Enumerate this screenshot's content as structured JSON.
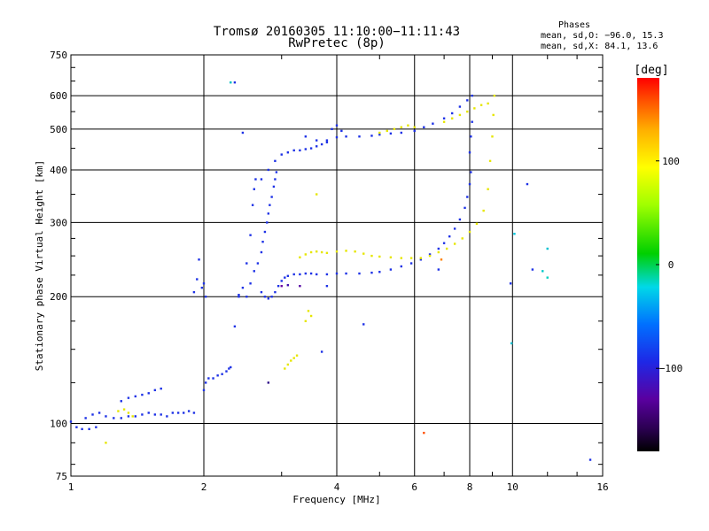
{
  "chart_data": {
    "type": "scatter",
    "title": "Tromsø 20160305 11:10:00−11:11:43",
    "subtitle": "RwPretec (8p)",
    "phases_info": {
      "heading": "Phases",
      "line1": "mean, sd,O: −96.0, 15.3",
      "line2": "mean, sd,X:  84.1, 13.6"
    },
    "xlabel": "Frequency [MHz]",
    "ylabel": "Stationary phase Virtual Height [km]",
    "x_scale": "log",
    "y_scale": "log",
    "xlim": [
      1,
      16
    ],
    "ylim": [
      75,
      750
    ],
    "x_ticks": [
      1,
      2,
      4,
      6,
      8,
      10,
      16
    ],
    "x_tick_labels": [
      "1",
      "2",
      "4",
      "6",
      "8",
      "10",
      "16"
    ],
    "y_ticks": [
      75,
      100,
      200,
      300,
      400,
      500,
      600,
      750
    ],
    "y_tick_labels": [
      "75",
      "100",
      "200",
      "300",
      "400",
      "500",
      "600",
      "750"
    ],
    "grid": true,
    "colorbar": {
      "label": "[deg]",
      "min": -180,
      "max": 180,
      "ticks": [
        100,
        0,
        -100
      ],
      "tick_labels": [
        "100",
        "0",
        "−100"
      ]
    },
    "series": [
      {
        "mode": "O",
        "color": "#1e32e6",
        "points": [
          [
            1.0,
            101
          ],
          [
            1.03,
            98
          ],
          [
            1.06,
            97
          ],
          [
            1.1,
            97
          ],
          [
            1.14,
            98
          ],
          [
            1.08,
            103
          ],
          [
            1.12,
            105
          ],
          [
            1.16,
            106
          ],
          [
            1.2,
            104
          ],
          [
            1.25,
            103
          ],
          [
            1.3,
            103
          ],
          [
            1.35,
            104
          ],
          [
            1.4,
            104
          ],
          [
            1.45,
            105
          ],
          [
            1.5,
            106
          ],
          [
            1.55,
            105
          ],
          [
            1.6,
            105
          ],
          [
            1.65,
            104
          ],
          [
            1.7,
            106
          ],
          [
            1.75,
            106
          ],
          [
            1.8,
            106
          ],
          [
            1.85,
            107
          ],
          [
            1.9,
            106
          ],
          [
            1.3,
            113
          ],
          [
            1.35,
            115
          ],
          [
            1.4,
            116
          ],
          [
            1.45,
            117
          ],
          [
            1.5,
            118
          ],
          [
            1.55,
            120
          ],
          [
            1.6,
            121
          ],
          [
            1.9,
            205
          ],
          [
            1.93,
            220
          ],
          [
            1.95,
            245
          ],
          [
            1.98,
            210
          ],
          [
            2.0,
            215
          ],
          [
            2.02,
            200
          ],
          [
            2.0,
            120
          ],
          [
            2.02,
            125
          ],
          [
            2.05,
            128
          ],
          [
            2.1,
            128
          ],
          [
            2.15,
            130
          ],
          [
            2.2,
            131
          ],
          [
            2.25,
            133
          ],
          [
            2.28,
            135
          ],
          [
            2.3,
            136
          ],
          [
            2.35,
            170
          ],
          [
            2.4,
            200
          ],
          [
            2.45,
            210
          ],
          [
            2.5,
            240
          ],
          [
            2.55,
            280
          ],
          [
            2.58,
            330
          ],
          [
            2.6,
            360
          ],
          [
            2.62,
            380
          ],
          [
            2.5,
            200
          ],
          [
            2.55,
            215
          ],
          [
            2.6,
            230
          ],
          [
            2.65,
            240
          ],
          [
            2.7,
            255
          ],
          [
            2.72,
            270
          ],
          [
            2.75,
            285
          ],
          [
            2.78,
            300
          ],
          [
            2.8,
            315
          ],
          [
            2.82,
            330
          ],
          [
            2.85,
            345
          ],
          [
            2.88,
            365
          ],
          [
            2.9,
            380
          ],
          [
            2.92,
            395
          ],
          [
            2.7,
            205
          ],
          [
            2.75,
            200
          ],
          [
            2.8,
            198
          ],
          [
            2.85,
            200
          ],
          [
            2.9,
            205
          ],
          [
            2.95,
            212
          ],
          [
            3.0,
            218
          ],
          [
            3.05,
            222
          ],
          [
            3.1,
            224
          ],
          [
            3.2,
            226
          ],
          [
            3.3,
            226
          ],
          [
            3.4,
            227
          ],
          [
            3.5,
            227
          ],
          [
            3.6,
            226
          ],
          [
            3.8,
            226
          ],
          [
            4.0,
            227
          ],
          [
            4.2,
            227
          ],
          [
            4.5,
            227
          ],
          [
            4.8,
            228
          ],
          [
            5.0,
            229
          ],
          [
            5.3,
            232
          ],
          [
            5.6,
            236
          ],
          [
            5.9,
            240
          ],
          [
            6.2,
            245
          ],
          [
            6.5,
            252
          ],
          [
            6.8,
            260
          ],
          [
            7.0,
            268
          ],
          [
            7.2,
            278
          ],
          [
            7.4,
            290
          ],
          [
            7.6,
            305
          ],
          [
            7.8,
            325
          ],
          [
            7.9,
            345
          ],
          [
            8.0,
            370
          ],
          [
            8.05,
            395
          ],
          [
            2.7,
            380
          ],
          [
            2.8,
            400
          ],
          [
            2.9,
            420
          ],
          [
            3.0,
            435
          ],
          [
            3.1,
            440
          ],
          [
            3.2,
            445
          ],
          [
            3.3,
            445
          ],
          [
            3.4,
            448
          ],
          [
            3.5,
            450
          ],
          [
            3.6,
            455
          ],
          [
            3.7,
            460
          ],
          [
            3.8,
            470
          ],
          [
            4.0,
            478
          ],
          [
            4.2,
            480
          ],
          [
            4.5,
            480
          ],
          [
            4.8,
            482
          ],
          [
            5.0,
            485
          ],
          [
            5.3,
            488
          ],
          [
            5.6,
            490
          ],
          [
            6.0,
            495
          ],
          [
            6.3,
            505
          ],
          [
            6.6,
            515
          ],
          [
            7.0,
            530
          ],
          [
            7.3,
            545
          ],
          [
            7.6,
            565
          ],
          [
            7.9,
            585
          ],
          [
            8.1,
            600
          ],
          [
            3.4,
            480
          ],
          [
            3.6,
            470
          ],
          [
            3.8,
            465
          ],
          [
            3.9,
            500
          ],
          [
            4.0,
            510
          ],
          [
            4.1,
            495
          ],
          [
            8.0,
            440
          ],
          [
            8.05,
            480
          ],
          [
            8.1,
            520
          ],
          [
            2.35,
            645
          ],
          [
            2.45,
            490
          ],
          [
            4.6,
            172
          ],
          [
            6.8,
            232
          ],
          [
            3.7,
            148
          ],
          [
            2.4,
            202
          ],
          [
            15.0,
            82
          ],
          [
            10.8,
            370
          ],
          [
            11.1,
            232
          ],
          [
            9.9,
            215
          ]
        ]
      },
      {
        "mode": "X",
        "color": "#e6e600",
        "points": [
          [
            1.28,
            107
          ],
          [
            1.32,
            108
          ],
          [
            1.35,
            106
          ],
          [
            1.38,
            104
          ],
          [
            3.3,
            248
          ],
          [
            3.4,
            252
          ],
          [
            3.5,
            255
          ],
          [
            3.6,
            256
          ],
          [
            3.7,
            255
          ],
          [
            3.8,
            254
          ],
          [
            4.0,
            256
          ],
          [
            4.2,
            257
          ],
          [
            4.4,
            256
          ],
          [
            4.6,
            253
          ],
          [
            4.8,
            250
          ],
          [
            5.0,
            249
          ],
          [
            5.3,
            248
          ],
          [
            5.6,
            247
          ],
          [
            5.9,
            247
          ],
          [
            6.2,
            247
          ],
          [
            6.5,
            250
          ],
          [
            6.8,
            255
          ],
          [
            7.1,
            260
          ],
          [
            7.4,
            267
          ],
          [
            7.7,
            275
          ],
          [
            8.0,
            285
          ],
          [
            8.3,
            298
          ],
          [
            8.6,
            320
          ],
          [
            8.8,
            360
          ],
          [
            8.9,
            420
          ],
          [
            9.0,
            480
          ],
          [
            9.05,
            540
          ],
          [
            9.1,
            600
          ],
          [
            3.4,
            175
          ],
          [
            3.45,
            185
          ],
          [
            3.5,
            180
          ],
          [
            3.05,
            135
          ],
          [
            3.1,
            138
          ],
          [
            3.15,
            141
          ],
          [
            3.2,
            143
          ],
          [
            3.25,
            145
          ],
          [
            5.0,
            490
          ],
          [
            5.2,
            495
          ],
          [
            5.4,
            500
          ],
          [
            5.6,
            505
          ],
          [
            5.8,
            510
          ],
          [
            6.0,
            505
          ],
          [
            7.0,
            520
          ],
          [
            7.3,
            530
          ],
          [
            7.6,
            540
          ],
          [
            7.9,
            550
          ],
          [
            8.2,
            560
          ],
          [
            8.5,
            570
          ],
          [
            8.8,
            575
          ],
          [
            3.6,
            350
          ],
          [
            1.2,
            90
          ]
        ]
      }
    ],
    "outliers": [
      {
        "x": 6.3,
        "y": 95,
        "color": "#ff5000"
      },
      {
        "x": 6.9,
        "y": 245,
        "color": "#ff8000"
      },
      {
        "x": 3.3,
        "y": 212,
        "color": "#5000a0"
      },
      {
        "x": 3.1,
        "y": 213,
        "color": "#4010b0"
      },
      {
        "x": 3.0,
        "y": 212,
        "color": "#6a00a0"
      },
      {
        "x": 2.8,
        "y": 125,
        "color": "#30108a"
      },
      {
        "x": 9.95,
        "y": 155,
        "color": "#00c0d0"
      },
      {
        "x": 10.1,
        "y": 282,
        "color": "#00c8e0"
      },
      {
        "x": 12.0,
        "y": 260,
        "color": "#00c0d0"
      },
      {
        "x": 12.0,
        "y": 222,
        "color": "#00d0c0"
      },
      {
        "x": 11.7,
        "y": 230,
        "color": "#00c8c8"
      },
      {
        "x": 2.3,
        "y": 645,
        "color": "#00c0c0"
      },
      {
        "x": 3.8,
        "y": 212,
        "color": "#1e32e6"
      }
    ]
  }
}
